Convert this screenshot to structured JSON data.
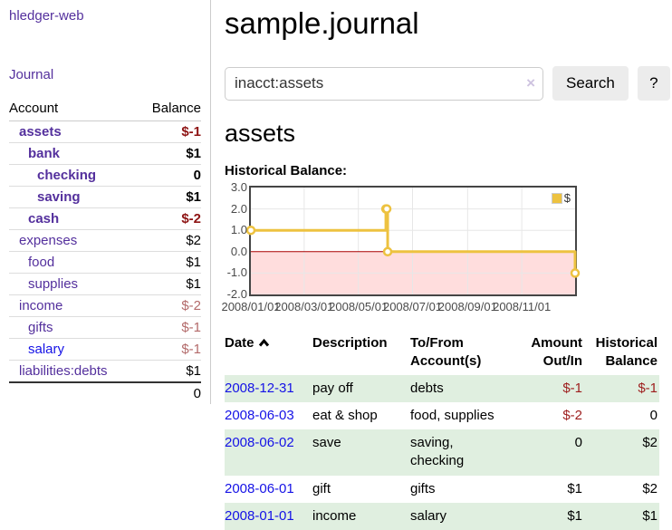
{
  "colors": {
    "link_purple": "#54309d",
    "link_blue": "#1512e6",
    "negative_strong": "#8e1414",
    "negative_soft": "#b36a6a",
    "row_green": "#e0efe0",
    "line_gold": "#edc240",
    "negative_zone": "#ffdddd",
    "zero_line": "#aa0000",
    "button_gray": "#ececec"
  },
  "sidebar": {
    "app_link": "hledger-web",
    "journal_link": "Journal",
    "accounts_header": {
      "account": "Account",
      "balance": "Balance"
    },
    "accounts": [
      {
        "name": "assets",
        "indent": 0,
        "bold": true,
        "balance": "$-1",
        "balance_color": "negative-strong",
        "link_color": "purple"
      },
      {
        "name": "bank",
        "indent": 1,
        "bold": true,
        "balance": "$1",
        "balance_color": "normal",
        "link_color": "purple"
      },
      {
        "name": "checking",
        "indent": 2,
        "bold": true,
        "balance": "0",
        "balance_color": "normal",
        "link_color": "purple"
      },
      {
        "name": "saving",
        "indent": 2,
        "bold": true,
        "balance": "$1",
        "balance_color": "normal",
        "link_color": "purple"
      },
      {
        "name": "cash",
        "indent": 1,
        "bold": true,
        "balance": "$-2",
        "balance_color": "negative-strong",
        "link_color": "purple"
      },
      {
        "name": "expenses",
        "indent": 0,
        "bold": false,
        "balance": "$2",
        "balance_color": "normal",
        "link_color": "purple"
      },
      {
        "name": "food",
        "indent": 1,
        "bold": false,
        "balance": "$1",
        "balance_color": "normal",
        "link_color": "purple"
      },
      {
        "name": "supplies",
        "indent": 1,
        "bold": false,
        "balance": "$1",
        "balance_color": "normal",
        "link_color": "purple"
      },
      {
        "name": "income",
        "indent": 0,
        "bold": false,
        "balance": "$-2",
        "balance_color": "negative-soft",
        "link_color": "purple"
      },
      {
        "name": "gifts",
        "indent": 1,
        "bold": false,
        "balance": "$-1",
        "balance_color": "negative-soft",
        "link_color": "purple"
      },
      {
        "name": "salary",
        "indent": 1,
        "bold": false,
        "balance": "$-1",
        "balance_color": "negative-soft",
        "link_color": "blue"
      },
      {
        "name": "liabilities:debts",
        "indent": 0,
        "bold": false,
        "balance": "$1",
        "balance_color": "normal",
        "link_color": "purple"
      }
    ],
    "total": "0"
  },
  "header": {
    "title": "sample.journal"
  },
  "search": {
    "value": "inacct:assets",
    "clear_icon": "×",
    "button": "Search",
    "help_button": "?"
  },
  "account_page": {
    "title": "assets",
    "chart_label": "Historical Balance:"
  },
  "chart_data": {
    "type": "line",
    "title": "Historical Balance:",
    "series": [
      {
        "name": "$",
        "color": "#edc240",
        "step": true,
        "points": [
          [
            "2008-01-01",
            1
          ],
          [
            "2008-06-01",
            2
          ],
          [
            "2008-06-02",
            2
          ],
          [
            "2008-06-03",
            0
          ],
          [
            "2008-12-31",
            -1
          ]
        ]
      }
    ],
    "x_range": [
      "2008-01-01",
      "2008-12-31"
    ],
    "x_tick_labels": [
      "2008/01/01",
      "2008/03/01",
      "2008/05/01",
      "2008/07/01",
      "2008/09/01",
      "2008/11/01"
    ],
    "y_tick_labels": [
      "3.0",
      "2.0",
      "1.0",
      "0.0",
      "-1.0",
      "-2.0"
    ],
    "ylim": [
      -2,
      3
    ],
    "grid": true,
    "negative_region_color": "#ffdddd",
    "zero_line_color": "#aa0000",
    "legend": {
      "label": "$",
      "position": "top-right"
    }
  },
  "register": {
    "columns": [
      "Date",
      "Description",
      "To/From Account(s)",
      "Amount Out/In",
      "Historical Balance"
    ],
    "sort": "date-ascending",
    "rows": [
      {
        "date": "2008-12-31",
        "description": "pay off",
        "accounts": "debts",
        "amount": "$-1",
        "amount_negative": true,
        "balance": "$-1",
        "balance_negative": true
      },
      {
        "date": "2008-06-03",
        "description": "eat & shop",
        "accounts": "food, supplies",
        "amount": "$-2",
        "amount_negative": true,
        "balance": "0",
        "balance_negative": false
      },
      {
        "date": "2008-06-02",
        "description": "save",
        "accounts": "saving, checking",
        "amount": "0",
        "amount_negative": false,
        "balance": "$2",
        "balance_negative": false
      },
      {
        "date": "2008-06-01",
        "description": "gift",
        "accounts": "gifts",
        "amount": "$1",
        "amount_negative": false,
        "balance": "$2",
        "balance_negative": false
      },
      {
        "date": "2008-01-01",
        "description": "income",
        "accounts": "salary",
        "amount": "$1",
        "amount_negative": false,
        "balance": "$1",
        "balance_negative": false
      }
    ]
  }
}
